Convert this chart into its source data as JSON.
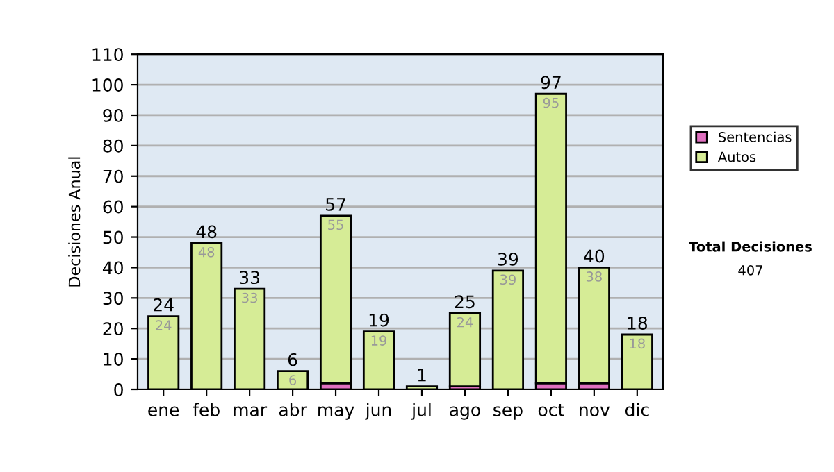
{
  "chart_data": {
    "type": "bar",
    "stacked": true,
    "ylabel": "Decisiones Anual",
    "categories": [
      "ene",
      "feb",
      "mar",
      "abr",
      "may",
      "jun",
      "jul",
      "ago",
      "sep",
      "oct",
      "nov",
      "dic"
    ],
    "series": [
      {
        "name": "Sentencias",
        "color": "#e070c0",
        "values": [
          0,
          0,
          0,
          0,
          2,
          0,
          0,
          1,
          0,
          2,
          2,
          0
        ]
      },
      {
        "name": "Autos",
        "color": "#d6ec96",
        "values": [
          24,
          48,
          33,
          6,
          55,
          19,
          1,
          24,
          39,
          95,
          38,
          18
        ],
        "value_labels": [
          "24",
          "48",
          "33",
          "6",
          "55",
          "19",
          null,
          "24",
          "39",
          "95",
          "38",
          "18"
        ]
      }
    ],
    "totals": [
      "24",
      "48",
      "33",
      "6",
      "57",
      "19",
      "1",
      "25",
      "39",
      "97",
      "40",
      "18"
    ],
    "ylim": [
      0,
      110
    ],
    "yticks": [
      0,
      10,
      20,
      30,
      40,
      50,
      60,
      70,
      80,
      90,
      100,
      110
    ],
    "grid": "y",
    "legend": "right",
    "annotations": [
      "Total Decisiones",
      "407"
    ]
  }
}
